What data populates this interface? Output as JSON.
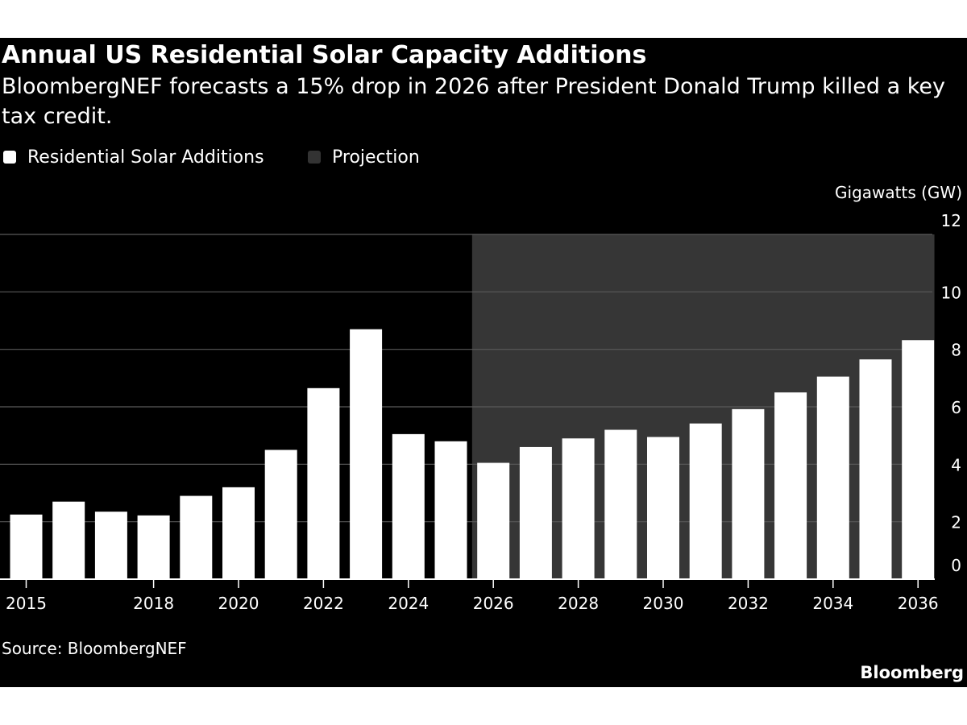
{
  "title": "Annual US Residential Solar Capacity Additions",
  "subtitle": "BloombergNEF forecasts a 15% drop in 2026 after President Donald Trump killed a key tax credit.",
  "legend": [
    {
      "label": "Residential Solar Additions",
      "color": "#ffffff"
    },
    {
      "label": "Projection",
      "color": "#333333"
    }
  ],
  "source": "Source: BloombergNEF",
  "brand": "Bloomberg",
  "colors": {
    "background": "#000000",
    "bar": "#ffffff",
    "projection_band": "#363636",
    "gridline": "#5a5a5a",
    "text": "#ffffff"
  },
  "chart_data": {
    "type": "bar",
    "ylabel": "Gigawatts (GW)",
    "ylim": [
      0,
      12
    ],
    "yticks": [
      0,
      2,
      4,
      6,
      8,
      10,
      12
    ],
    "y_axis_side": "right",
    "grid": true,
    "x": [
      2015,
      2016,
      2017,
      2018,
      2019,
      2020,
      2021,
      2022,
      2023,
      2024,
      2025,
      2026,
      2027,
      2028,
      2029,
      2030,
      2031,
      2032,
      2033,
      2034,
      2035,
      2036
    ],
    "xtick_labels": [
      {
        "x": 2015,
        "label": "2015"
      },
      {
        "x": 2018,
        "label": "2018"
      },
      {
        "x": 2020,
        "label": "2020"
      },
      {
        "x": 2022,
        "label": "2022"
      },
      {
        "x": 2024,
        "label": "2024"
      },
      {
        "x": 2026,
        "label": "2026"
      },
      {
        "x": 2028,
        "label": "2028"
      },
      {
        "x": 2030,
        "label": "2030"
      },
      {
        "x": 2032,
        "label": "2032"
      },
      {
        "x": 2034,
        "label": "2034"
      },
      {
        "x": 2036,
        "label": "2036"
      }
    ],
    "series": [
      {
        "name": "Residential Solar Additions",
        "values": [
          2.25,
          2.7,
          2.35,
          2.22,
          2.9,
          3.2,
          4.5,
          6.65,
          8.7,
          5.05,
          4.8,
          4.05,
          4.6,
          4.9,
          5.2,
          4.95,
          5.42,
          5.92,
          6.5,
          7.05,
          7.65,
          8.32
        ]
      }
    ],
    "projection": {
      "label": "Projection",
      "from": 2026,
      "to": 2036
    }
  }
}
